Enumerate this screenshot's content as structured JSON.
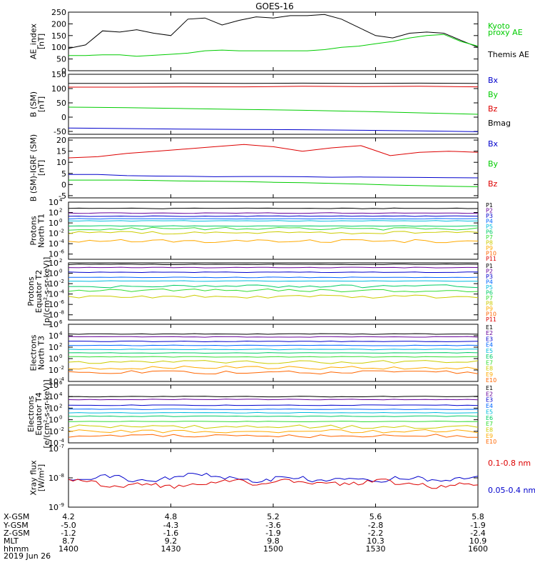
{
  "title": "GOES-16",
  "panels": [
    {
      "id": "ae",
      "ylabel": [
        "AE_index",
        "[nT]"
      ],
      "ylim": [
        0,
        250
      ],
      "ticks": [
        0,
        50,
        100,
        150,
        200,
        250
      ],
      "tick_labels": [
        "0",
        "50",
        "100",
        "150",
        "200",
        "250"
      ],
      "legend": [
        {
          "text": "Kyoto",
          "color": "#00cc00"
        },
        {
          "text": "proxy AE",
          "color": "#00cc00"
        },
        {
          "text": "Themis AE",
          "color": "#000000"
        }
      ]
    },
    {
      "id": "bsm",
      "ylabel": [
        "B (SM)",
        "[nT]"
      ],
      "ylim": [
        -60,
        150
      ],
      "ticks": [
        -50,
        0,
        50,
        100,
        150
      ],
      "tick_labels": [
        "-50",
        "0",
        "50",
        "100",
        "150"
      ],
      "legend": [
        {
          "text": "Bx",
          "color": "#0000cc"
        },
        {
          "text": "By",
          "color": "#00cc00"
        },
        {
          "text": "Bz",
          "color": "#dd0000"
        },
        {
          "text": "Bmag",
          "color": "#000000"
        }
      ]
    },
    {
      "id": "bigrf",
      "ylabel": [
        "B (SM)-IGRF (SM)",
        "[nT]"
      ],
      "ylim": [
        -6,
        21
      ],
      "ticks": [
        -5,
        0,
        5,
        10,
        15,
        20
      ],
      "tick_labels": [
        "-5",
        "0",
        "5",
        "10",
        "15",
        "20"
      ],
      "legend": [
        {
          "text": "Bx",
          "color": "#0000cc"
        },
        {
          "text": "By",
          "color": "#00cc00"
        },
        {
          "text": "Bz",
          "color": "#dd0000"
        }
      ]
    },
    {
      "id": "pnorth",
      "ylabel": [
        "Protons",
        "North T1"
      ],
      "log": true,
      "ylim": [
        -7,
        4
      ],
      "ticks": [
        4,
        2,
        0,
        -2,
        -4,
        -6
      ],
      "tick_labels": [
        "10",
        "10",
        "10",
        "10",
        "10",
        "10"
      ],
      "tick_exps": [
        "4",
        "2",
        "0",
        "-2",
        "-4",
        "-6"
      ],
      "legend_labels": [
        "P1",
        "P2",
        "P3",
        "P4",
        "P5",
        "P6",
        "P7",
        "P8",
        "P9",
        "P10",
        "P11"
      ]
    },
    {
      "id": "peq",
      "ylabel": [
        "Protons",
        "Equator T2",
        "[p/(cm²-s-sr-keV)]"
      ],
      "log": true,
      "ylim": [
        -9,
        2
      ],
      "ticks": [
        2,
        0,
        -2,
        -4,
        -6,
        -8
      ],
      "tick_labels": [
        "10",
        "10",
        "10",
        "10",
        "10",
        "10"
      ],
      "tick_exps": [
        "2",
        "0",
        "-2",
        "-4",
        "-6",
        "-8"
      ],
      "legend_labels": [
        "P1",
        "P2",
        "P3",
        "P4",
        "P5",
        "P6",
        "P7",
        "P8",
        "P9",
        "P10",
        "P11"
      ]
    },
    {
      "id": "enorth",
      "ylabel": [
        "Electrons",
        "North T3"
      ],
      "log": true,
      "ylim": [
        -4,
        6
      ],
      "ticks": [
        6,
        4,
        2,
        0,
        -2,
        -4
      ],
      "tick_labels": [
        "10",
        "10",
        "10",
        "10",
        "10",
        "10"
      ],
      "tick_exps": [
        "6",
        "4",
        "2",
        "0",
        "-2",
        "-4"
      ],
      "legend_labels": [
        "E1",
        "E2",
        "E3",
        "E4",
        "E5",
        "E6",
        "E7",
        "E8",
        "E9",
        "E10"
      ]
    },
    {
      "id": "eeq",
      "ylabel": [
        "Electrons",
        "Equator T4",
        "[e/(cm²-s-sr-keV)]"
      ],
      "log": true,
      "ylim": [
        -4,
        6
      ],
      "ticks": [
        6,
        4,
        2,
        0,
        -2,
        -4
      ],
      "tick_labels": [
        "10",
        "10",
        "10",
        "10",
        "10",
        "10"
      ],
      "tick_exps": [
        "6",
        "4",
        "2",
        "0",
        "-2",
        "-4"
      ],
      "legend_labels": [
        "E1",
        "E2",
        "E3",
        "E4",
        "E5",
        "E6",
        "E7",
        "E8",
        "E9",
        "E10"
      ]
    },
    {
      "id": "xray",
      "ylabel": [
        "Xray flux",
        "[W/m²]"
      ],
      "log": true,
      "ylim": [
        -9,
        -7
      ],
      "ticks": [
        -7,
        -8,
        -9
      ],
      "tick_labels": [
        "10",
        "10",
        "10"
      ],
      "tick_exps": [
        "-7",
        "-8",
        "-9"
      ],
      "legend": [
        {
          "text": "0.1-0.8 nm",
          "color": "#dd0000"
        },
        {
          "text": "0.05-0.4 nm",
          "color": "#0000cc"
        }
      ]
    }
  ],
  "energy_colors": [
    "#000000",
    "#660099",
    "#0000cc",
    "#0066ff",
    "#00bbdd",
    "#00cc66",
    "#33dd33",
    "#cccc00",
    "#ffaa00",
    "#ff6600",
    "#dd0000"
  ],
  "axis_rows": [
    {
      "label": "X-GSM",
      "values": [
        "4.2",
        "4.8",
        "5.2",
        "5.6",
        "5.8"
      ]
    },
    {
      "label": "Y-GSM",
      "values": [
        "-5.0",
        "-4.3",
        "-3.6",
        "-2.8",
        "-1.9"
      ]
    },
    {
      "label": "Z-GSM",
      "values": [
        "-1.2",
        "-1.6",
        "-1.9",
        "-2.2",
        "-2.4"
      ]
    },
    {
      "label": "MLT",
      "values": [
        "8.7",
        "9.2",
        "9.8",
        "10.3",
        "10.9"
      ]
    },
    {
      "label": "hhmm",
      "values": [
        "1400",
        "1430",
        "1500",
        "1530",
        "1600"
      ]
    }
  ],
  "date_label": "2019 Jun 26",
  "chart_data": {
    "type": "line",
    "title": "GOES-16",
    "x_time_hhmm": [
      "1400",
      "1430",
      "1500",
      "1530",
      "1600"
    ],
    "series": {
      "themis_ae": {
        "name": "Themis AE",
        "x_hhmm": [
          "1400",
          "1405",
          "1410",
          "1415",
          "1420",
          "1425",
          "1430",
          "1435",
          "1440",
          "1445",
          "1450",
          "1455",
          "1500",
          "1505",
          "1510",
          "1515",
          "1520",
          "1525",
          "1530",
          "1535",
          "1540",
          "1545",
          "1550",
          "1555",
          "1600"
        ],
        "values": [
          95,
          110,
          170,
          165,
          175,
          160,
          150,
          220,
          225,
          195,
          215,
          230,
          225,
          235,
          235,
          240,
          220,
          185,
          150,
          140,
          160,
          165,
          160,
          130,
          100
        ]
      },
      "kyoto_proxy_ae": {
        "name": "Kyoto proxy AE",
        "x_hhmm": [
          "1400",
          "1405",
          "1410",
          "1415",
          "1420",
          "1425",
          "1430",
          "1435",
          "1440",
          "1445",
          "1450",
          "1455",
          "1500",
          "1505",
          "1510",
          "1515",
          "1520",
          "1525",
          "1530",
          "1535",
          "1540",
          "1545",
          "1550",
          "1555",
          "1600"
        ],
        "values": [
          65,
          65,
          68,
          68,
          62,
          66,
          70,
          75,
          85,
          88,
          85,
          85,
          85,
          85,
          85,
          90,
          100,
          105,
          115,
          125,
          140,
          150,
          155,
          125,
          105
        ]
      },
      "b_sm": {
        "Bmag": [
          118,
          118,
          119,
          118,
          119,
          118,
          119,
          118
        ],
        "Bz": [
          105,
          105,
          106,
          106,
          108,
          107,
          108,
          106
        ],
        "By": [
          35,
          33,
          30,
          27,
          24,
          20,
          15,
          10
        ],
        "Bx": [
          -38,
          -40,
          -42,
          -43,
          -44,
          -46,
          -48,
          -51
        ]
      },
      "b_minus_igrf": {
        "Bz": [
          12,
          12.5,
          14,
          15,
          16,
          17,
          18,
          17,
          15,
          16.5,
          17.5,
          13,
          14.5,
          15,
          14.5
        ],
        "Bx": [
          4.5,
          4.5,
          4,
          3.8,
          3.7,
          3.5,
          3.6,
          3.6,
          3.5,
          3.3,
          3.4,
          3.3,
          3.2,
          3.1,
          3
        ],
        "By": [
          2,
          2,
          2,
          1.8,
          1.6,
          1.5,
          1.3,
          1,
          0.8,
          0.5,
          0.2,
          -0.2,
          -0.5,
          -0.8,
          -1
        ]
      },
      "protons_north_log10": [
        2.8,
        1.9,
        1.3,
        0.8,
        0.4,
        -0.6,
        -1.1,
        -1.9,
        -3.5
      ],
      "protons_equator_log10": [
        1.7,
        1.1,
        0.2,
        -0.8,
        -1.5,
        -2.5,
        -3.3,
        -4.5
      ],
      "electrons_north_log10": [
        4.3,
        3.8,
        3.0,
        2.3,
        1.6,
        1.0,
        0.3,
        -0.6,
        -1.6,
        -2.4
      ],
      "electrons_equator_log10": [
        4.0,
        3.5,
        2.5,
        1.8,
        1.2,
        0.6,
        -0.3,
        -1.2,
        -2.0,
        -2.8
      ],
      "xray_01_08_log10": [
        -8.1,
        -8.3,
        -8.2,
        -8.3,
        -8.2,
        -8.1,
        -8.2,
        -8.1,
        -8.2,
        -8.2,
        -8.1,
        -8.2,
        -8.3,
        -8.2
      ],
      "xray_005_04_log10": [
        -8.05,
        -7.95,
        -8.1,
        -8.0,
        -7.9,
        -8.0,
        -8.1,
        -8.0,
        -8.1,
        -8.0,
        -8.1,
        -8.0,
        -8.1,
        -8.0
      ]
    }
  }
}
